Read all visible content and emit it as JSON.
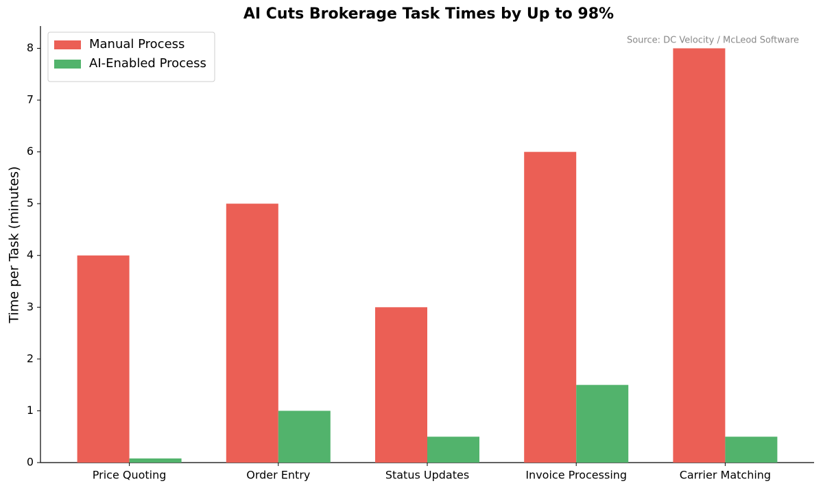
{
  "chart_data": {
    "type": "grouped-bar",
    "title": "AI Cuts Brokerage Task Times by Up to 98%",
    "annotation": "Source: DC Velocity / McLeod Software",
    "y_label": "Time per Task (minutes)",
    "categories": [
      "Price Quoting",
      "Order Entry",
      "Status Updates",
      "Invoice Processing",
      "Carrier Matching"
    ],
    "series": [
      {
        "name": "Manual Process",
        "color": "#eb5f55",
        "values": [
          4,
          5,
          3,
          6,
          8
        ]
      },
      {
        "name": "AI-Enabled Process",
        "color": "#52b36c",
        "values": [
          0.08,
          1,
          0.5,
          1.5,
          0.5
        ]
      }
    ],
    "ylim": [
      0,
      8.43
    ],
    "yticks": [
      0,
      1,
      2,
      3,
      4,
      5,
      6,
      7,
      8
    ],
    "grid": false,
    "legend": "upper-left"
  }
}
